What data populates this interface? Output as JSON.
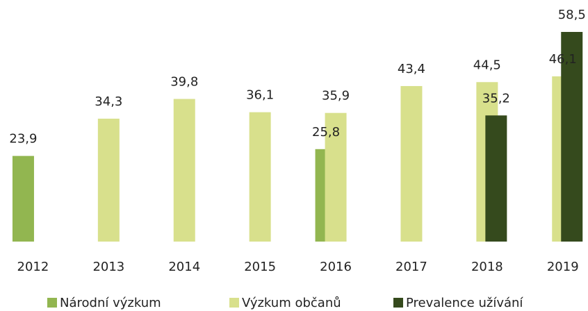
{
  "chart_data": {
    "type": "bar",
    "categories": [
      "2012",
      "2013",
      "2014",
      "2015",
      "2016",
      "2017",
      "2018",
      "2019"
    ],
    "series": [
      {
        "name": "Národní výzkum",
        "color": "#92b650",
        "values": [
          23.9,
          null,
          null,
          null,
          25.8,
          null,
          null,
          null
        ],
        "value_labels": [
          "23,9",
          null,
          null,
          null,
          "25,8",
          null,
          null,
          null
        ]
      },
      {
        "name": "Výzkum občanů",
        "color": "#d8e08c",
        "values": [
          null,
          34.3,
          39.8,
          36.1,
          35.9,
          43.4,
          44.5,
          46.1
        ],
        "value_labels": [
          null,
          "34,3",
          "39,8",
          "36,1",
          "35,9",
          "43,4",
          "44,5",
          "46,1"
        ]
      },
      {
        "name": "Prevalence užívání",
        "color": "#354a1d",
        "values": [
          null,
          null,
          null,
          null,
          null,
          null,
          35.2,
          58.5
        ],
        "value_labels": [
          null,
          null,
          null,
          null,
          null,
          null,
          "35,2",
          "58,5"
        ]
      }
    ]
  }
}
